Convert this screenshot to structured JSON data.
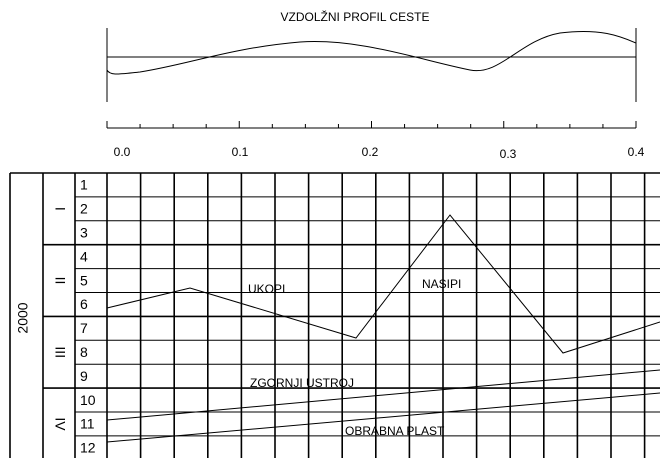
{
  "title": "VZDOLŽNI PROFIL CESTE",
  "scale_labels": [
    "0.0",
    "0.1",
    "0.2",
    "0.3",
    "0.4"
  ],
  "side_label": "2000",
  "group_labels": [
    "I",
    "II",
    "III",
    "IV"
  ],
  "row_numbers": [
    "1",
    "2",
    "3",
    "4",
    "5",
    "6",
    "7",
    "8",
    "9",
    "10",
    "11",
    "12"
  ],
  "annotations": {
    "cut": "UKOPI",
    "fill": "NASIPI",
    "upper_structure": "ZGORNJI USTROJ",
    "wearing_layer": "OBRABNA PLAST"
  }
}
